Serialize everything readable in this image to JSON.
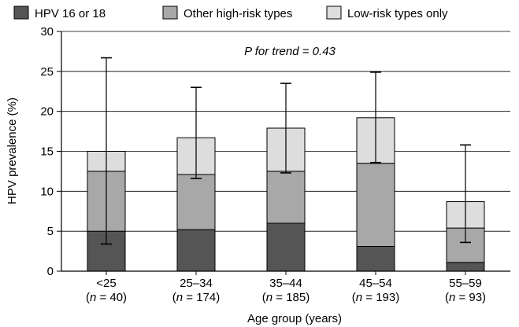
{
  "chart_data": {
    "type": "bar",
    "stacked": true,
    "categories": [
      "<25",
      "25–34",
      "35–44",
      "45–54",
      "55–59"
    ],
    "category_n": [
      "40",
      "174",
      "185",
      "193",
      "93"
    ],
    "n_label": "n",
    "series": [
      {
        "name": "HPV 16 or 18",
        "color": "#555555",
        "values": [
          5.0,
          5.2,
          6.0,
          3.1,
          1.1
        ]
      },
      {
        "name": "Other high-risk types",
        "color": "#a8a8a8",
        "values": [
          7.5,
          6.9,
          6.5,
          10.4,
          4.3
        ]
      },
      {
        "name": "Low-risk types only",
        "color": "#dddddd",
        "values": [
          2.5,
          4.6,
          5.4,
          5.7,
          3.3
        ]
      }
    ],
    "error_bars": {
      "lower": [
        3.4,
        11.6,
        12.3,
        13.6,
        3.6
      ],
      "upper": [
        26.7,
        23.0,
        23.5,
        24.9,
        15.8
      ]
    },
    "xlabel": "Age group (years)",
    "ylabel": "HPV prevalence (%)",
    "ylim": [
      0,
      30
    ],
    "yticks": [
      0,
      5,
      10,
      15,
      20,
      25,
      30
    ],
    "annotation": "P for trend = 0.43",
    "legend_position": "top",
    "grid": true
  }
}
